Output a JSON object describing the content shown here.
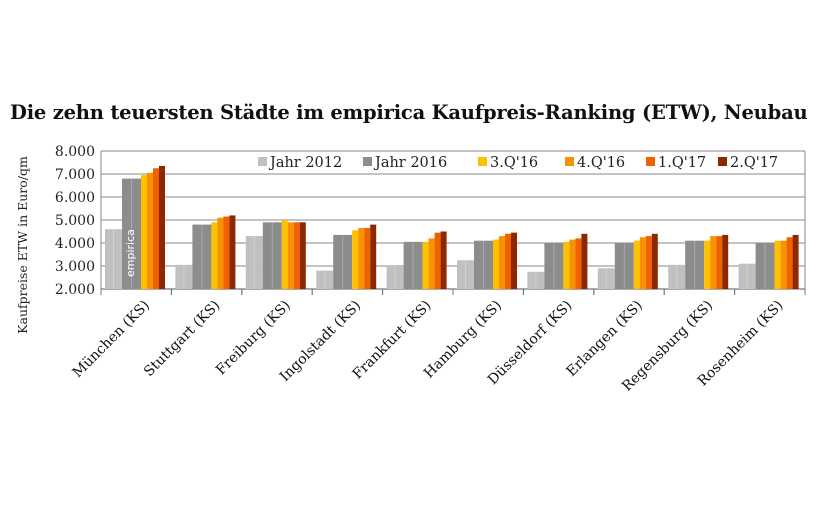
{
  "chart_data": {
    "type": "bar",
    "title": "Die zehn teuersten Städte im empirica Kaufpreis-Ranking (ETW), Neubau",
    "xlabel": "",
    "ylabel": "Kaufpreise ETW in Euro/qm",
    "ylim": [
      2000,
      8000
    ],
    "yticks": [
      "2.000",
      "3.000",
      "4.000",
      "5.000",
      "6.000",
      "7.000",
      "8.000"
    ],
    "grid": true,
    "legend_position": "top-right",
    "watermark": "empirica",
    "categories": [
      "München (KS)",
      "Stuttgart (KS)",
      "Freiburg (KS)",
      "Ingolstadt (KS)",
      "Frankfurt (KS)",
      "Hamburg (KS)",
      "Düsseldorf (KS)",
      "Erlangen (KS)",
      "Regensburg (KS)",
      "Rosenheim (KS)"
    ],
    "series": [
      {
        "name": "Jahr 2012",
        "color": "#c0c0c0",
        "values": [
          4600,
          3050,
          4300,
          2800,
          3000,
          3250,
          2750,
          2900,
          3050,
          3100
        ]
      },
      {
        "name": "Jahr 2016",
        "color": "#8c8c8c",
        "values": [
          6800,
          4800,
          4900,
          4350,
          4050,
          4100,
          4000,
          4000,
          4100,
          4000
        ]
      },
      {
        "name": "3.Q'16",
        "color": "#ffc000",
        "values": [
          6950,
          4900,
          5000,
          4550,
          4050,
          4150,
          4050,
          4100,
          4100,
          4100
        ]
      },
      {
        "name": "4.Q'16",
        "color": "#f79200",
        "values": [
          7050,
          5100,
          4900,
          4650,
          4200,
          4300,
          4150,
          4250,
          4300,
          4100
        ]
      },
      {
        "name": "1.Q'17",
        "color": "#f26100",
        "values": [
          7250,
          5150,
          4900,
          4650,
          4450,
          4400,
          4200,
          4300,
          4300,
          4250
        ]
      },
      {
        "name": "2.Q'17",
        "color": "#8b2a00",
        "values": [
          7350,
          5200,
          4900,
          4800,
          4500,
          4450,
          4400,
          4400,
          4350,
          4350
        ]
      }
    ]
  }
}
